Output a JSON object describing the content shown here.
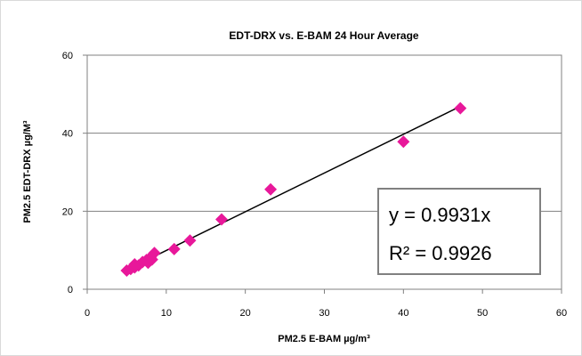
{
  "chart_data": {
    "type": "scatter",
    "title": "EDT-DRX vs. E-BAM  24 Hour Average",
    "xlabel": "PM2.5 E-BAM µg/m³",
    "ylabel": "PM2.5 EDT-DRX µg/M³",
    "xlim": [
      0,
      60
    ],
    "ylim": [
      0,
      60
    ],
    "xticks": [
      "0",
      "10",
      "20",
      "30",
      "40",
      "50",
      "60"
    ],
    "yticks": [
      "0",
      "20",
      "40",
      "60"
    ],
    "grid": "horizontal",
    "marker_color": "#e8189a",
    "trendline_color": "#000000",
    "points": [
      {
        "x": 5.0,
        "y": 4.8
      },
      {
        "x": 5.5,
        "y": 5.2
      },
      {
        "x": 6.0,
        "y": 5.6
      },
      {
        "x": 6.0,
        "y": 6.4
      },
      {
        "x": 6.5,
        "y": 6.1
      },
      {
        "x": 7.0,
        "y": 7.0
      },
      {
        "x": 7.5,
        "y": 7.5
      },
      {
        "x": 7.7,
        "y": 6.8
      },
      {
        "x": 8.0,
        "y": 8.2
      },
      {
        "x": 8.2,
        "y": 7.6
      },
      {
        "x": 8.5,
        "y": 9.3
      },
      {
        "x": 11.0,
        "y": 10.3
      },
      {
        "x": 13.0,
        "y": 12.5
      },
      {
        "x": 17.0,
        "y": 17.9
      },
      {
        "x": 23.2,
        "y": 25.6
      },
      {
        "x": 40.0,
        "y": 37.8
      },
      {
        "x": 47.2,
        "y": 46.4
      }
    ],
    "trendline": {
      "slope": 0.9931,
      "x_range": [
        5.0,
        47.2
      ]
    },
    "equation": "y = 0.9931x",
    "r_squared": "R² = 0.9926"
  }
}
